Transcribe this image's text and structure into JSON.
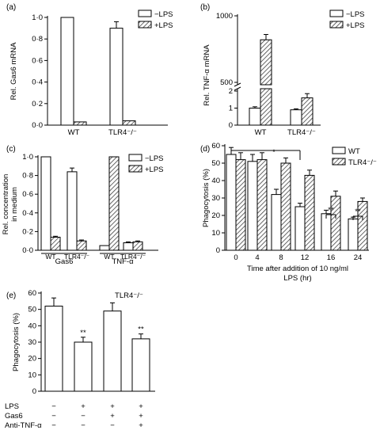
{
  "hatch_color": "#404040",
  "chart_data": [
    {
      "panel": "(a)",
      "type": "bar",
      "ylabel": "Rel. Gas6 mRNA",
      "ylim": [
        0,
        1.0
      ],
      "yticks": [
        "0·0",
        "0·2",
        "0·4",
        "0·6",
        "0·8",
        "1·0"
      ],
      "categories": [
        "WT",
        "TLR4⁻/⁻"
      ],
      "series": [
        {
          "name": "−LPS",
          "values": [
            1.0,
            0.9
          ],
          "errors": [
            0,
            0.06
          ],
          "style": "open"
        },
        {
          "name": "+LPS",
          "values": [
            0.03,
            0.04
          ],
          "errors": [
            0,
            0
          ],
          "style": "hatched"
        }
      ],
      "legend": "top-right"
    },
    {
      "panel": "(b)",
      "type": "bar",
      "ylabel": "Rel. TNF-α mRNA",
      "axis_break": true,
      "yticks": [
        "0",
        "1",
        "2",
        "500",
        "1000"
      ],
      "categories": [
        "WT",
        "TLR4⁻/⁻"
      ],
      "series": [
        {
          "name": "−LPS",
          "values": [
            1.0,
            0.9
          ],
          "errors": [
            0.08,
            0.06
          ],
          "style": "open"
        },
        {
          "name": "+LPS",
          "values": [
            820,
            1.6
          ],
          "errors": [
            40,
            0.25
          ],
          "style": "hatched"
        }
      ],
      "legend": "top-right"
    },
    {
      "panel": "(c)",
      "type": "bar",
      "ylabel": "Rel. concentration in medium",
      "ylabel_lines": [
        "Rel. concentration",
        "in medium"
      ],
      "ylim": [
        0,
        1.0
      ],
      "yticks": [
        "0·0",
        "0·2",
        "0·4",
        "0·6",
        "0·8",
        "1·0"
      ],
      "categories": [
        "WT",
        "TLR4⁻/⁻",
        "WT",
        "TLR4⁻/⁻"
      ],
      "groups": [
        "Gas6",
        "TNF-α"
      ],
      "series": [
        {
          "name": "−LPS",
          "values": [
            1.0,
            0.84,
            0.05,
            0.08
          ],
          "errors": [
            0,
            0.04,
            0,
            0.01
          ],
          "style": "open"
        },
        {
          "name": "+LPS",
          "values": [
            0.14,
            0.1,
            1.0,
            0.09
          ],
          "errors": [
            0.01,
            0.01,
            0,
            0.01
          ],
          "style": "hatched"
        }
      ],
      "legend": "top-right"
    },
    {
      "panel": "(d)",
      "type": "bar",
      "ylabel": "Phagocytosis (%)",
      "xlabel": "Time after addition of 10 ng/ml LPS (hr)",
      "xlabel_lines": [
        "Time after addition of 10 ng/ml",
        "LPS (hr)"
      ],
      "ylim": [
        0,
        60
      ],
      "yticks": [
        "0",
        "10",
        "20",
        "30",
        "40",
        "50",
        "60"
      ],
      "categories": [
        "0",
        "4",
        "8",
        "12",
        "16",
        "24"
      ],
      "series": [
        {
          "name": "WT",
          "values": [
            55,
            51,
            32,
            25,
            21,
            18
          ],
          "errors": [
            4,
            4,
            3,
            2,
            2,
            1
          ],
          "style": "open"
        },
        {
          "name": "TLR4⁻/⁻",
          "values": [
            52,
            52,
            50,
            43,
            31,
            28
          ],
          "errors": [
            4,
            4,
            3,
            3,
            3,
            2
          ],
          "style": "hatched"
        }
      ],
      "annotations": [
        "*",
        "**",
        "**"
      ],
      "legend": "top-right"
    },
    {
      "panel": "(e)",
      "type": "bar",
      "title": "TLR4⁻/⁻",
      "ylabel": "Phagocytosis (%)",
      "ylim": [
        0,
        60
      ],
      "yticks": [
        "0",
        "10",
        "20",
        "30",
        "40",
        "50",
        "60"
      ],
      "values": [
        52,
        30,
        49,
        32
      ],
      "errors": [
        5,
        3,
        5,
        3
      ],
      "annotations": [
        "",
        "**",
        "",
        "**"
      ],
      "condition_labels": [
        "LPS",
        "Gas6",
        "Anti-TNF-α"
      ],
      "condition_signs": [
        [
          "−",
          "+",
          "+",
          "+"
        ],
        [
          "−",
          "−",
          "+",
          "+"
        ],
        [
          "−",
          "−",
          "−",
          "+"
        ]
      ]
    }
  ]
}
